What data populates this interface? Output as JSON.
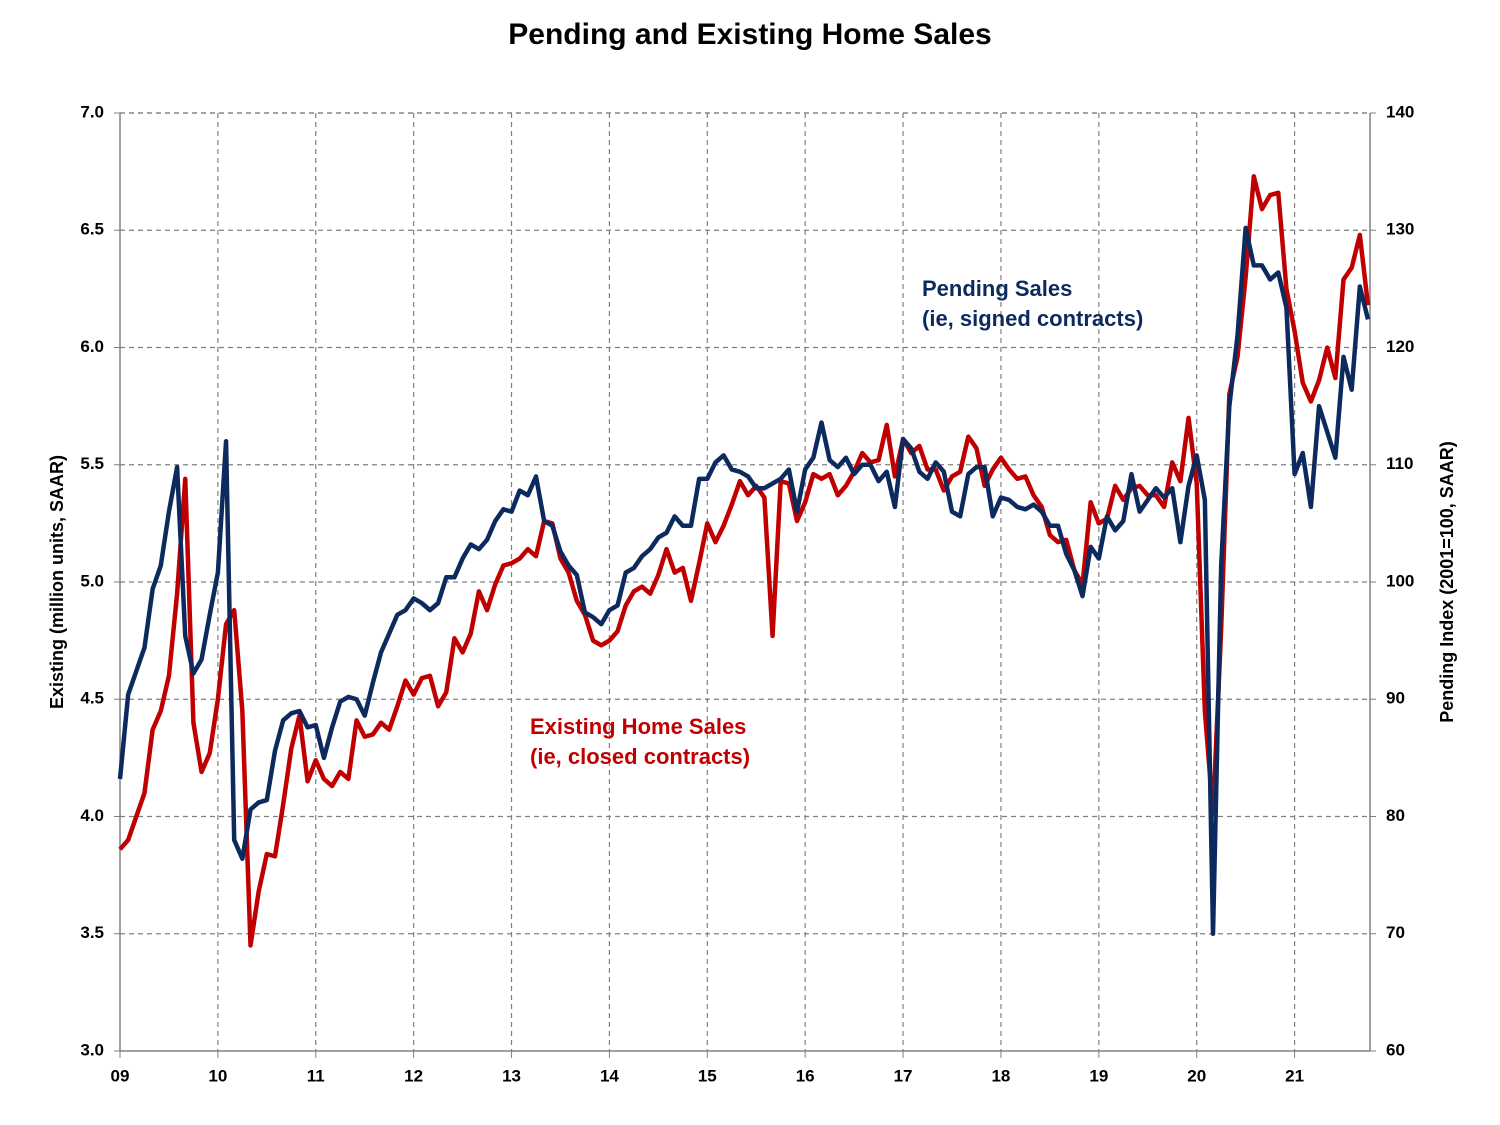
{
  "chart_data": {
    "type": "line",
    "title": "Pending and Existing Home Sales",
    "ylabel": "Existing (million units, SAAR)",
    "y2label": "Pending Index (2001=100, SAAR)",
    "categories": [
      "09",
      null,
      null,
      null,
      null,
      null,
      null,
      null,
      null,
      null,
      null,
      null,
      "10",
      null,
      null,
      null,
      null,
      null,
      null,
      null,
      null,
      null,
      null,
      null,
      "11",
      null,
      null,
      null,
      null,
      null,
      null,
      null,
      null,
      null,
      null,
      null,
      "12",
      null,
      null,
      null,
      null,
      null,
      null,
      null,
      null,
      null,
      null,
      null,
      "13",
      null,
      null,
      null,
      null,
      null,
      null,
      null,
      null,
      null,
      null,
      null,
      "14",
      null,
      null,
      null,
      null,
      null,
      null,
      null,
      null,
      null,
      null,
      null,
      "15",
      null,
      null,
      null,
      null,
      null,
      null,
      null,
      null,
      null,
      null,
      null,
      "16",
      null,
      null,
      null,
      null,
      null,
      null,
      null,
      null,
      null,
      null,
      null,
      "17",
      null,
      null,
      null,
      null,
      null,
      null,
      null,
      null,
      null,
      null,
      null,
      "18",
      null,
      null,
      null,
      null,
      null,
      null,
      null,
      null,
      null,
      null,
      null,
      "19",
      null,
      null,
      null,
      null,
      null,
      null,
      null,
      null,
      null,
      null,
      null,
      "20",
      null,
      null,
      null,
      null,
      null,
      null,
      null,
      null,
      null,
      null,
      null,
      "21",
      null,
      null,
      null,
      null,
      null,
      null,
      null,
      null,
      null
    ],
    "series": [
      {
        "name": "Existing Home Sales",
        "note": "(ie, closed contracts)",
        "color": "#c00000",
        "axis": "y",
        "values": [
          3.86,
          3.9,
          4.0,
          4.1,
          4.37,
          4.45,
          4.6,
          4.95,
          5.44,
          4.4,
          4.19,
          4.27,
          4.5,
          4.82,
          4.88,
          4.45,
          3.45,
          3.68,
          3.84,
          3.83,
          4.05,
          4.29,
          4.43,
          4.15,
          4.24,
          4.16,
          4.13,
          4.19,
          4.16,
          4.41,
          4.34,
          4.35,
          4.4,
          4.37,
          4.47,
          4.58,
          4.52,
          4.59,
          4.6,
          4.47,
          4.53,
          4.76,
          4.7,
          4.78,
          4.96,
          4.88,
          4.99,
          5.07,
          5.08,
          5.1,
          5.14,
          5.11,
          5.26,
          5.25,
          5.1,
          5.04,
          4.92,
          4.86,
          4.75,
          4.73,
          4.75,
          4.79,
          4.9,
          4.96,
          4.98,
          4.95,
          5.03,
          5.14,
          5.04,
          5.06,
          4.92,
          5.08,
          5.25,
          5.17,
          5.24,
          5.33,
          5.43,
          5.37,
          5.41,
          5.36,
          4.77,
          5.43,
          5.42,
          5.26,
          5.34,
          5.46,
          5.44,
          5.46,
          5.37,
          5.41,
          5.47,
          5.55,
          5.51,
          5.52,
          5.67,
          5.45,
          5.61,
          5.55,
          5.58,
          5.48,
          5.48,
          5.39,
          5.45,
          5.47,
          5.62,
          5.57,
          5.41,
          5.48,
          5.53,
          5.48,
          5.44,
          5.45,
          5.37,
          5.32,
          5.2,
          5.17,
          5.18,
          5.05,
          4.99,
          5.34,
          5.25,
          5.27,
          5.41,
          5.35,
          5.4,
          5.41,
          5.37,
          5.37,
          5.32,
          5.51,
          5.43,
          5.7,
          5.42,
          4.45,
          4.01,
          4.8,
          5.8,
          5.96,
          6.3,
          6.73,
          6.59,
          6.65,
          6.66,
          6.25,
          6.07,
          5.85,
          5.77,
          5.86,
          6.0,
          5.87,
          6.29,
          6.34,
          6.48,
          6.18
        ]
      },
      {
        "name": "Pending Sales",
        "note": "(ie, signed contracts)",
        "color": "#0d2a5e",
        "axis": "y2",
        "values": [
          83.2,
          90.4,
          92.4,
          94.4,
          99.4,
          101.4,
          106,
          109.8,
          95.4,
          92.2,
          93.4,
          97.2,
          100.8,
          112,
          78,
          76.4,
          80.6,
          81.2,
          81.4,
          85.6,
          88.2,
          88.8,
          89,
          87.6,
          87.8,
          85,
          87.6,
          89.8,
          90.2,
          90,
          88.6,
          91.4,
          94,
          95.6,
          97.2,
          97.6,
          98.6,
          98.2,
          97.6,
          98.2,
          100.4,
          100.4,
          102,
          103.2,
          102.8,
          103.6,
          105.2,
          106.2,
          106,
          107.8,
          107.4,
          109,
          105.2,
          104.8,
          102.6,
          101.4,
          100.6,
          97.4,
          97,
          96.4,
          97.6,
          98,
          100.8,
          101.2,
          102.2,
          102.8,
          103.8,
          104.2,
          105.6,
          104.8,
          104.8,
          108.8,
          108.8,
          110.2,
          110.8,
          109.6,
          109.4,
          109,
          108,
          108,
          108.4,
          108.8,
          109.6,
          106,
          109.6,
          110.6,
          113.6,
          110.4,
          109.8,
          110.6,
          109.2,
          110,
          110,
          108.6,
          109.4,
          106.4,
          112.2,
          111.4,
          109.4,
          108.8,
          110.2,
          109.4,
          106,
          105.6,
          109.2,
          109.8,
          109.8,
          105.6,
          107.2,
          107,
          106.4,
          106.2,
          106.6,
          106,
          104.8,
          104.8,
          102.4,
          101,
          98.8,
          103,
          102,
          105.6,
          104.4,
          105.2,
          109.2,
          106,
          107,
          108,
          107.2,
          108,
          103.4,
          108.2,
          110.8,
          107,
          70,
          101.4,
          115,
          121,
          130.2,
          127,
          127,
          125.8,
          126.4,
          123.4,
          109.2,
          111,
          106.4,
          115,
          112.8,
          110.6,
          119.2,
          116.4,
          125.2,
          122.4
        ]
      }
    ],
    "ylim": [
      3.0,
      7.0
    ],
    "yticks": [
      {
        "value": 3.0,
        "label": "3.0"
      },
      3.5,
      {
        "value": 4.0,
        "label": "4.0"
      },
      4.5,
      {
        "value": 5.0,
        "label": "5.0"
      },
      5.5,
      {
        "value": 6.0,
        "label": "6.0"
      },
      6.5,
      {
        "value": 7.0,
        "label": "7.0"
      }
    ],
    "y2lim": [
      60,
      140
    ],
    "y2ticks": [
      60,
      70,
      80,
      90,
      100,
      110,
      120,
      130,
      140
    ],
    "grid": true
  }
}
